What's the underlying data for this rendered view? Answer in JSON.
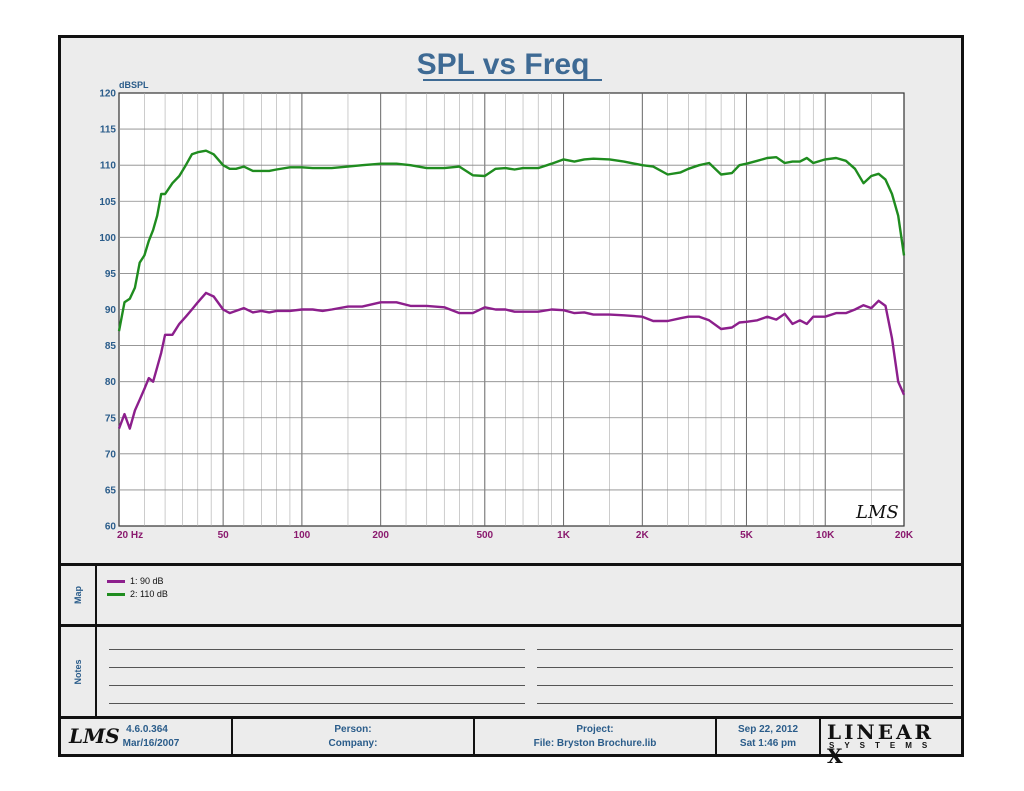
{
  "chart_data": {
    "type": "line",
    "title": "SPL vs Freq",
    "ylabel": "dBSPL",
    "xscale": "log",
    "xlim": [
      20,
      20000
    ],
    "ylim": [
      60,
      120
    ],
    "yticks": [
      60,
      65,
      70,
      75,
      80,
      85,
      90,
      95,
      100,
      105,
      110,
      115,
      120
    ],
    "xticks": [
      {
        "value": 20,
        "label": "20  Hz"
      },
      {
        "value": 50,
        "label": "50"
      },
      {
        "value": 100,
        "label": "100"
      },
      {
        "value": 200,
        "label": "200"
      },
      {
        "value": 500,
        "label": "500"
      },
      {
        "value": 1000,
        "label": "1K"
      },
      {
        "value": 2000,
        "label": "2K"
      },
      {
        "value": 5000,
        "label": "5K"
      },
      {
        "value": 10000,
        "label": "10K"
      },
      {
        "value": 20000,
        "label": "20K"
      }
    ],
    "grid": true,
    "series": [
      {
        "name": "1: 90 dB",
        "color": "#8c1f8c",
        "x": [
          20,
          21,
          22,
          23,
          24,
          25,
          26,
          27,
          28,
          29,
          30,
          32,
          34,
          36,
          38,
          40,
          43,
          46,
          50,
          53,
          56,
          60,
          65,
          70,
          75,
          80,
          90,
          100,
          110,
          120,
          130,
          150,
          170,
          200,
          230,
          260,
          300,
          350,
          400,
          450,
          500,
          550,
          600,
          650,
          700,
          800,
          900,
          1000,
          1100,
          1200,
          1300,
          1500,
          1700,
          2000,
          2200,
          2500,
          2800,
          3000,
          3300,
          3600,
          4000,
          4400,
          4700,
          5000,
          5500,
          6000,
          6500,
          7000,
          7500,
          8000,
          8500,
          9000,
          10000,
          11000,
          12000,
          13000,
          14000,
          15000,
          16000,
          17000,
          18000,
          19000,
          20000
        ],
        "y": [
          73.5,
          75.5,
          73.5,
          76,
          77.5,
          79,
          80.5,
          80,
          82,
          84,
          86.5,
          86.5,
          88,
          89,
          90,
          91,
          92.3,
          91.8,
          90,
          89.5,
          89.8,
          90.2,
          89.6,
          89.8,
          89.6,
          89.8,
          89.8,
          90,
          90,
          89.8,
          90,
          90.4,
          90.4,
          91,
          91,
          90.5,
          90.5,
          90.3,
          89.5,
          89.5,
          90.3,
          90,
          90,
          89.7,
          89.7,
          89.7,
          90,
          89.9,
          89.5,
          89.6,
          89.3,
          89.3,
          89.2,
          89,
          88.4,
          88.4,
          88.8,
          89,
          89,
          88.5,
          87.3,
          87.5,
          88.2,
          88.3,
          88.5,
          89,
          88.6,
          89.4,
          88,
          88.5,
          88,
          89,
          89,
          89.5,
          89.5,
          90,
          90.6,
          90.2,
          91.2,
          90.5,
          86,
          80,
          78.2
        ]
      },
      {
        "name": "2: 110 dB",
        "color": "#1f8c1f",
        "x": [
          20,
          21,
          22,
          23,
          24,
          25,
          26,
          27,
          28,
          29,
          30,
          32,
          34,
          36,
          38,
          40,
          43,
          46,
          50,
          53,
          56,
          60,
          65,
          70,
          75,
          80,
          90,
          100,
          110,
          120,
          130,
          150,
          170,
          200,
          230,
          260,
          300,
          350,
          400,
          450,
          500,
          550,
          600,
          650,
          700,
          800,
          900,
          1000,
          1100,
          1200,
          1300,
          1500,
          1700,
          2000,
          2200,
          2500,
          2800,
          3000,
          3300,
          3600,
          4000,
          4400,
          4700,
          5000,
          5500,
          6000,
          6500,
          7000,
          7500,
          8000,
          8500,
          9000,
          10000,
          11000,
          12000,
          13000,
          14000,
          15000,
          16000,
          17000,
          18000,
          19000,
          20000
        ],
        "y": [
          87,
          91,
          91.5,
          93,
          96.5,
          97.5,
          99.5,
          101,
          103,
          106,
          106,
          107.5,
          108.5,
          110,
          111.5,
          111.8,
          112,
          111.5,
          110,
          109.5,
          109.5,
          109.8,
          109.2,
          109.2,
          109.2,
          109.4,
          109.7,
          109.7,
          109.6,
          109.6,
          109.6,
          109.8,
          110,
          110.2,
          110.2,
          110,
          109.6,
          109.6,
          109.8,
          108.6,
          108.5,
          109.5,
          109.6,
          109.4,
          109.6,
          109.6,
          110.2,
          110.8,
          110.5,
          110.8,
          110.9,
          110.8,
          110.5,
          110,
          109.8,
          108.7,
          109,
          109.5,
          110,
          110.3,
          108.7,
          108.9,
          110,
          110.2,
          110.6,
          111,
          111.1,
          110.3,
          110.5,
          110.5,
          111,
          110.3,
          110.8,
          111,
          110.6,
          109.5,
          107.5,
          108.5,
          108.8,
          108,
          106,
          103,
          97.5
        ]
      }
    ]
  },
  "watermark": "LMS",
  "map": {
    "label": "Map",
    "items": [
      {
        "label": "1: 90 dB",
        "color": "#8c1f8c"
      },
      {
        "label": "2: 110 dB",
        "color": "#1f8c1f"
      }
    ]
  },
  "notes": {
    "label": "Notes"
  },
  "footer": {
    "logo": "LMS",
    "version": "4.6.0.364",
    "build_date": "Mar/16/2007",
    "person_label": "Person:",
    "company_label": "Company:",
    "project_label": "Project:",
    "file_label": "File: Bryston Brochure.lib",
    "date": "Sep 22, 2012",
    "time": "Sat  1:46 pm",
    "brand_top": "LINEAR X",
    "brand_bottom": "SYSTEMS"
  }
}
